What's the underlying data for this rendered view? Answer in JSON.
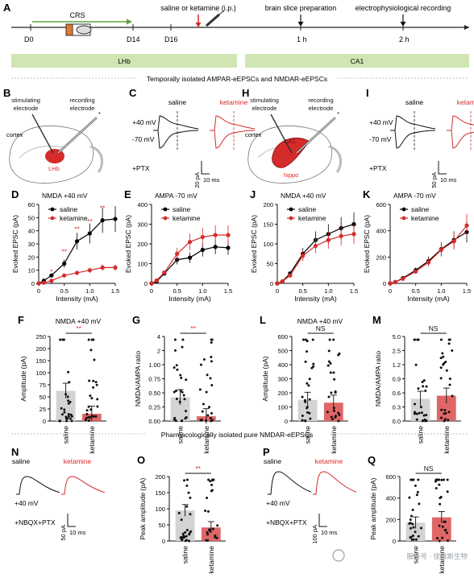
{
  "timeline": {
    "panel_label": "A",
    "crs": "CRS",
    "treat": "saline or ketamine (i.p.)",
    "slice": "brain slice preparation",
    "ephys": "electrophysiological recording",
    "ticks": [
      "D0",
      "D14",
      "D16",
      "1 h",
      "2 h"
    ],
    "bar_lhb": "LHb",
    "bar_ca1": "CA1",
    "section1": "Temporally isolated AMPAR-eEPSCs and NMDAR-eEPSCs",
    "section2": "Pharmacologically isolated pure NMDAR-eEPSCs"
  },
  "schematics": [
    {
      "panel": "B",
      "stim": "stimulating\nelectrode",
      "rec": "recording\nelectrode",
      "region1": "cortex",
      "region2": "LHb"
    },
    {
      "panel": "H",
      "stim": "stimulating\nelectrode",
      "rec": "recording\nelectrode",
      "region1": "cortex",
      "region2": "CA1",
      "region3": "hippo"
    }
  ],
  "traces": [
    {
      "panel": "C",
      "saline": "saline",
      "ketamine": "ketamine",
      "v1": "+40 mV",
      "v2": "-70 mV",
      "drug": "+PTX",
      "sb_y": "20 pA",
      "sb_x": "10 ms"
    },
    {
      "panel": "I",
      "saline": "saline",
      "ketamine": "ketamine",
      "v1": "+40 mV",
      "v2": "-70 mV",
      "drug": "+PTX",
      "sb_y": "50 pA",
      "sb_x": "10 ms"
    },
    {
      "panel": "N",
      "saline": "saline",
      "ketamine": "ketamine",
      "v1": "+40 mV",
      "drug": "+NBQX+PTX",
      "sb_y": "50 pA",
      "sb_x": "10 ms"
    },
    {
      "panel": "P",
      "saline": "saline",
      "ketamine": "ketamine",
      "v1": "+40 mV",
      "drug": "+NBQX+PTX",
      "sb_y": "100 pA",
      "sb_x": "10 ms"
    }
  ],
  "chart_data": [
    {
      "panel": "D",
      "type": "line",
      "title": "NMDA   +40 mV",
      "xlabel": "Intensity (mA)",
      "ylabel": "Evoked EPSC (pA)",
      "xlim": [
        0,
        1.5
      ],
      "ylim": [
        0,
        60
      ],
      "xticks": [
        "0",
        "0.5",
        "1.0",
        "1.5"
      ],
      "yticks": [
        "0",
        "10",
        "20",
        "30",
        "40",
        "50",
        "60"
      ],
      "x": [
        0,
        0.1,
        0.25,
        0.5,
        0.75,
        1.0,
        1.25,
        1.5
      ],
      "series": [
        {
          "name": "saline",
          "color": "#000000",
          "values": [
            0,
            2,
            6,
            15,
            32,
            38,
            48,
            49
          ]
        },
        {
          "name": "ketamine",
          "color": "#d62b2b",
          "values": [
            0,
            0.5,
            2,
            6,
            8,
            10,
            12,
            12
          ]
        }
      ],
      "annotations": [
        "*",
        "**",
        "**",
        "**",
        "**"
      ]
    },
    {
      "panel": "E",
      "type": "line",
      "title": "AMPA   -70 mV",
      "xlabel": "Intensity (mA)",
      "ylabel": "Evoked EPSC (pA)",
      "xlim": [
        0,
        1.5
      ],
      "ylim": [
        0,
        400
      ],
      "xticks": [
        "0",
        "0.5",
        "1.0",
        "1.5"
      ],
      "yticks": [
        "0",
        "100",
        "200",
        "300",
        "400"
      ],
      "x": [
        0,
        0.1,
        0.25,
        0.5,
        0.75,
        1.0,
        1.25,
        1.5
      ],
      "series": [
        {
          "name": "saline",
          "color": "#000000",
          "values": [
            0,
            10,
            50,
            120,
            130,
            170,
            185,
            180
          ]
        },
        {
          "name": "ketamine",
          "color": "#d62b2b",
          "values": [
            0,
            15,
            55,
            150,
            210,
            235,
            245,
            245
          ]
        }
      ]
    },
    {
      "panel": "J",
      "type": "line",
      "title": "NMDA   +40 mV",
      "xlabel": "Intensity (mA)",
      "ylabel": "Evoked EPSC (pA)",
      "xlim": [
        0,
        1.5
      ],
      "ylim": [
        0,
        200
      ],
      "xticks": [
        "0",
        "0.5",
        "1.0",
        "1.5"
      ],
      "yticks": [
        "0",
        "50",
        "100",
        "150",
        "200"
      ],
      "x": [
        0,
        0.1,
        0.25,
        0.5,
        0.75,
        1.0,
        1.25,
        1.5
      ],
      "series": [
        {
          "name": "saline",
          "color": "#000000",
          "values": [
            0,
            5,
            25,
            75,
            110,
            125,
            140,
            150
          ]
        },
        {
          "name": "ketamine",
          "color": "#d62b2b",
          "values": [
            0,
            5,
            20,
            70,
            95,
            110,
            120,
            125
          ]
        }
      ]
    },
    {
      "panel": "K",
      "type": "line",
      "title": "AMPA   -70 mV",
      "xlabel": "Intensity (mA)",
      "ylabel": "Evoked EPSC (pA)",
      "xlim": [
        0,
        1.5
      ],
      "ylim": [
        0,
        600
      ],
      "xticks": [
        "0",
        "0.5",
        "1.0",
        "1.5"
      ],
      "yticks": [
        "0",
        "200",
        "400",
        "600"
      ],
      "x": [
        0,
        0.1,
        0.25,
        0.5,
        0.75,
        1.0,
        1.25,
        1.5
      ],
      "series": [
        {
          "name": "saline",
          "color": "#000000",
          "values": [
            0,
            10,
            40,
            100,
            170,
            260,
            330,
            390
          ]
        },
        {
          "name": "ketamine",
          "color": "#d62b2b",
          "values": [
            0,
            10,
            35,
            90,
            160,
            255,
            320,
            440
          ]
        }
      ]
    },
    {
      "panel": "F",
      "type": "bar",
      "title": "NMDA   +40 mV",
      "ylabel": "Amplitude (pA)",
      "categories": [
        "saline",
        "ketamine"
      ],
      "yticks": [
        "0",
        "25",
        "50",
        "75",
        "100",
        "150",
        "200",
        "250"
      ],
      "values": [
        50,
        12
      ],
      "sig": "**",
      "bar_colors": [
        "#d3d3d3",
        "#e06666"
      ]
    },
    {
      "panel": "G",
      "type": "bar",
      "ylabel": "NMDA/AMPA ratio",
      "categories": [
        "saline",
        "ketamine"
      ],
      "yticks": [
        "0.00",
        "0.25",
        "0.50",
        "0.75",
        "1.00",
        "2",
        "4"
      ],
      "values": [
        0.45,
        0.09
      ],
      "sig": "**",
      "bar_colors": [
        "#d3d3d3",
        "#e06666"
      ]
    },
    {
      "panel": "L",
      "type": "bar",
      "title": "NMDA   +40 mV",
      "ylabel": "Amplitude (pA)",
      "categories": [
        "saline",
        "ketamine"
      ],
      "yticks": [
        "0",
        "100",
        "200",
        "300",
        "400",
        "500",
        "600"
      ],
      "values": [
        150,
        130
      ],
      "sig": "NS",
      "bar_colors": [
        "#d3d3d3",
        "#e06666"
      ]
    },
    {
      "panel": "M",
      "type": "bar",
      "ylabel": "NMDA/AMPA ratio",
      "categories": [
        "saline",
        "ketamine"
      ],
      "yticks": [
        "0.0",
        "0.3",
        "0.6",
        "0.9",
        "1.2",
        "2.5",
        "5.0"
      ],
      "values": [
        0.42,
        0.48
      ],
      "sig": "NS",
      "bar_colors": [
        "#d3d3d3",
        "#e06666"
      ]
    },
    {
      "panel": "O",
      "type": "bar",
      "ylabel": "Peak amplitude (pA)",
      "categories": [
        "saline",
        "ketamine"
      ],
      "yticks": [
        "0",
        "50",
        "100",
        "150",
        "200"
      ],
      "values": [
        95,
        42
      ],
      "sig": "**",
      "bar_colors": [
        "#d3d3d3",
        "#e06666"
      ]
    },
    {
      "panel": "Q",
      "type": "bar",
      "ylabel": "Peak amplitude (pA)",
      "categories": [
        "saline",
        "ketamine"
      ],
      "yticks": [
        "0",
        "200",
        "400",
        "600"
      ],
      "values": [
        170,
        220
      ],
      "sig": "NS",
      "bar_colors": [
        "#d3d3d3",
        "#e06666"
      ]
    }
  ],
  "watermark": "服务号 · 佳维斯生物",
  "colors": {
    "red": "#d62b2b",
    "green_bar": "#cfe6b4",
    "arrow_green": "#5ea33a"
  }
}
